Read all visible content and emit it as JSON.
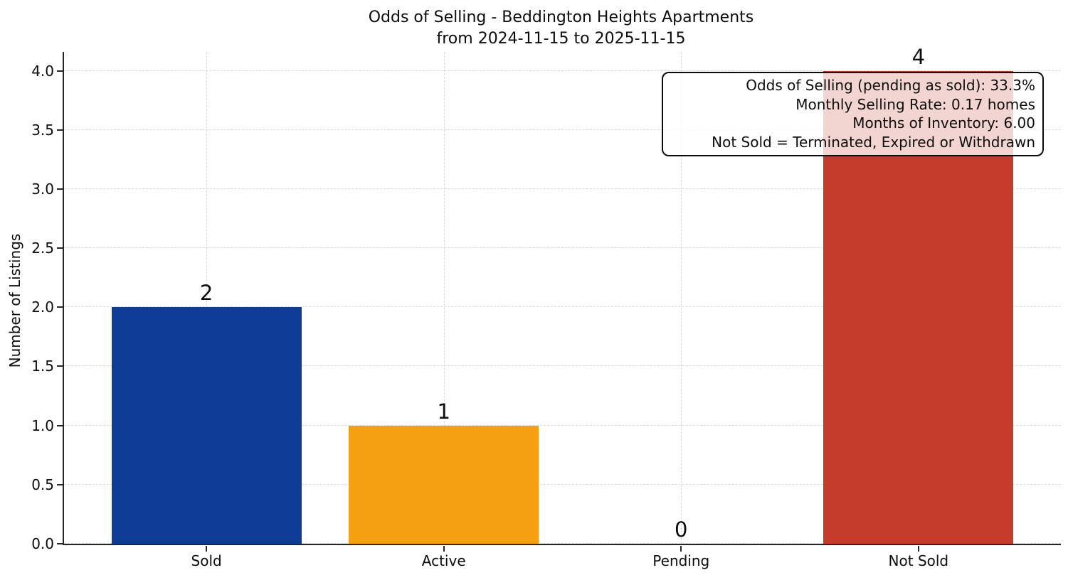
{
  "chart_data": {
    "type": "bar",
    "title": "Odds of Selling - Beddington Heights Apartments\nfrom 2024-11-15 to 2025-11-15",
    "title_lines": [
      "Odds of Selling - Beddington Heights Apartments",
      "from 2024-11-15 to 2025-11-15"
    ],
    "xlabel": "",
    "ylabel": "Number of Listings",
    "categories": [
      "Sold",
      "Active",
      "Pending",
      "Not Sold"
    ],
    "values": [
      2,
      1,
      0,
      4
    ],
    "bar_labels": [
      "2",
      "1",
      "0",
      "4"
    ],
    "colors": [
      "#0f3d96",
      "#f5a012",
      "#808080",
      "#c53b2c"
    ],
    "ylim": [
      0,
      4.16
    ],
    "yticks": [
      0.0,
      0.5,
      1.0,
      1.5,
      2.0,
      2.5,
      3.0,
      3.5,
      4.0
    ],
    "ytick_labels": [
      "0.0",
      "0.5",
      "1.0",
      "1.5",
      "2.0",
      "2.5",
      "3.0",
      "3.5",
      "4.0"
    ],
    "grid": true,
    "grid_style": "dashed",
    "grid_color": "#d8d8d8",
    "axis_color": "#262626",
    "bar_width": 0.8,
    "x_margin": 0.6,
    "legend": "none",
    "annotation_position": "top-right",
    "annotation_lines": [
      "Odds of Selling (pending as sold): 33.3%",
      "Monthly Selling Rate: 0.17 homes",
      "Months of Inventory: 6.00",
      "Not Sold = Terminated, Expired or Withdrawn"
    ]
  }
}
